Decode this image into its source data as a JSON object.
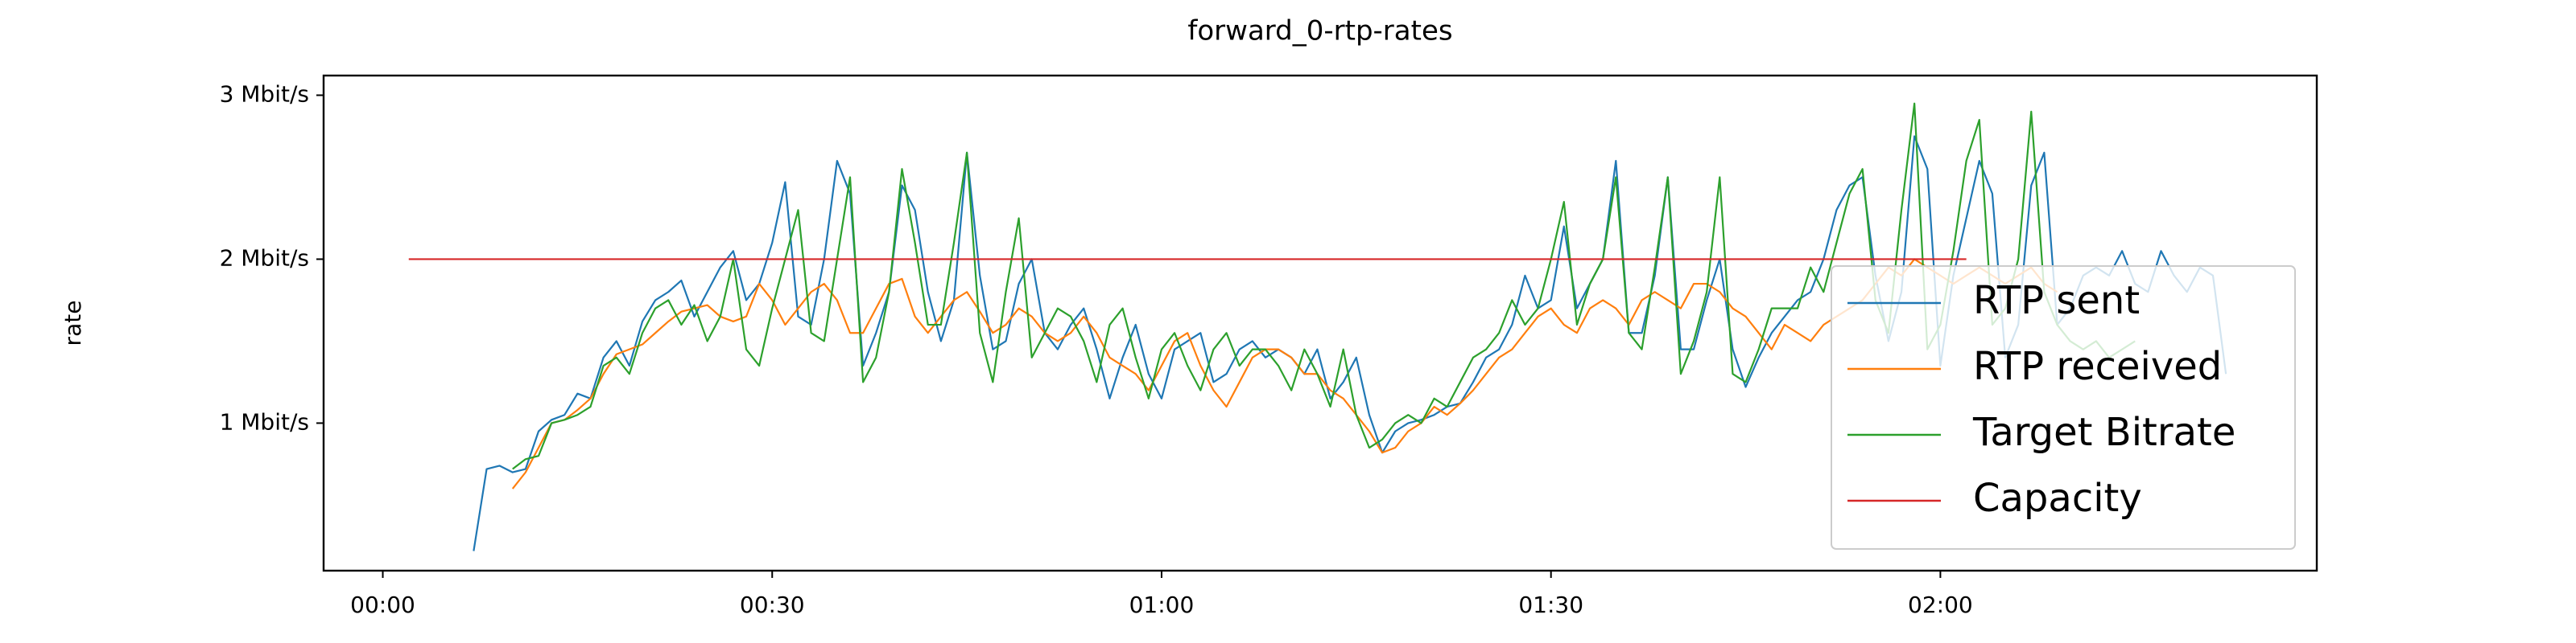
{
  "chart_data": {
    "type": "line",
    "title": "forward_0-rtp-rates",
    "y_label": "rate",
    "xlim": [
      -4.56,
      149
    ],
    "ylim": [
      0.1,
      3.12
    ],
    "xticks": [
      {
        "value": 0,
        "label": "00:00"
      },
      {
        "value": 30,
        "label": "00:30"
      },
      {
        "value": 60,
        "label": "01:00"
      },
      {
        "value": 90,
        "label": "01:30"
      },
      {
        "value": 120,
        "label": "02:00"
      }
    ],
    "yticks": [
      {
        "value": 1,
        "label": "1 Mbit/s"
      },
      {
        "value": 2,
        "label": "2 Mbit/s"
      },
      {
        "value": 3,
        "label": "3 Mbit/s"
      }
    ],
    "grid": false,
    "legend": "lower right",
    "x": [
      2,
      3,
      4,
      5,
      6,
      7,
      8,
      9,
      10,
      11,
      12,
      13,
      14,
      15,
      16,
      17,
      18,
      19,
      20,
      21,
      22,
      23,
      24,
      25,
      26,
      27,
      28,
      29,
      30,
      31,
      32,
      33,
      34,
      35,
      36,
      37,
      38,
      39,
      40,
      41,
      42,
      43,
      44,
      45,
      46,
      47,
      48,
      49,
      50,
      51,
      52,
      53,
      54,
      55,
      56,
      57,
      58,
      59,
      60,
      61,
      62,
      63,
      64,
      65,
      66,
      67,
      68,
      69,
      70,
      71,
      72,
      73,
      74,
      75,
      76,
      77,
      78,
      79,
      80,
      81,
      82,
      83,
      84,
      85,
      86,
      87,
      88,
      89,
      90,
      91,
      92,
      93,
      94,
      95,
      96,
      97,
      98,
      99,
      100,
      101,
      102,
      103,
      104,
      105,
      106,
      107,
      108,
      109,
      110,
      111,
      112,
      113,
      114,
      115,
      116,
      117,
      118,
      119,
      120,
      121,
      122,
      123,
      124,
      125,
      126,
      127,
      128,
      129,
      130,
      131,
      132,
      133,
      134,
      135,
      136,
      137,
      138,
      139,
      140,
      141,
      142
    ],
    "series": [
      {
        "name": "RTP sent",
        "color": "#1f77b4",
        "values": [
          null,
          null,
          null,
          null,
          null,
          0.22,
          0.72,
          0.74,
          0.7,
          0.72,
          0.95,
          1.02,
          1.05,
          1.18,
          1.15,
          1.4,
          1.5,
          1.35,
          1.62,
          1.75,
          1.8,
          1.87,
          1.65,
          1.8,
          1.95,
          2.05,
          1.75,
          1.85,
          2.1,
          2.47,
          1.65,
          1.6,
          2.0,
          2.6,
          2.4,
          1.35,
          1.55,
          1.8,
          2.45,
          2.3,
          1.8,
          1.5,
          1.75,
          2.65,
          1.9,
          1.45,
          1.5,
          1.85,
          2.0,
          1.55,
          1.45,
          1.6,
          1.7,
          1.45,
          1.15,
          1.4,
          1.6,
          1.3,
          1.15,
          1.45,
          1.5,
          1.55,
          1.25,
          1.3,
          1.45,
          1.5,
          1.4,
          1.45,
          1.4,
          1.3,
          1.45,
          1.15,
          1.25,
          1.4,
          1.05,
          0.82,
          0.95,
          1.0,
          1.02,
          1.05,
          1.1,
          1.12,
          1.25,
          1.4,
          1.45,
          1.6,
          1.9,
          1.7,
          1.75,
          2.2,
          1.7,
          1.85,
          2.0,
          2.6,
          1.55,
          1.55,
          1.9,
          2.5,
          1.45,
          1.45,
          1.75,
          2.0,
          1.45,
          1.22,
          1.4,
          1.55,
          1.65,
          1.75,
          1.8,
          2.0,
          2.3,
          2.45,
          2.5,
          1.9,
          1.5,
          1.8,
          2.75,
          2.55,
          1.35,
          1.9,
          2.25,
          2.6,
          2.4,
          1.4,
          1.6,
          2.45,
          2.65,
          1.6,
          1.7,
          1.9,
          1.95,
          1.9,
          2.05,
          1.85,
          1.8,
          2.05,
          1.9,
          1.8,
          1.95,
          1.9,
          1.3
        ]
      },
      {
        "name": "RTP received",
        "color": "#ff7f0e",
        "values": [
          null,
          null,
          null,
          null,
          null,
          null,
          null,
          null,
          0.6,
          0.7,
          0.85,
          1.0,
          1.02,
          1.08,
          1.15,
          1.3,
          1.42,
          1.45,
          1.48,
          1.55,
          1.62,
          1.68,
          1.7,
          1.72,
          1.65,
          1.62,
          1.65,
          1.85,
          1.75,
          1.6,
          1.7,
          1.8,
          1.85,
          1.75,
          1.55,
          1.55,
          1.7,
          1.85,
          1.88,
          1.65,
          1.55,
          1.65,
          1.75,
          1.8,
          1.68,
          1.55,
          1.6,
          1.7,
          1.65,
          1.55,
          1.5,
          1.55,
          1.65,
          1.55,
          1.4,
          1.35,
          1.3,
          1.2,
          1.35,
          1.5,
          1.55,
          1.35,
          1.2,
          1.1,
          1.25,
          1.4,
          1.45,
          1.45,
          1.4,
          1.3,
          1.3,
          1.2,
          1.15,
          1.05,
          0.95,
          0.82,
          0.85,
          0.95,
          1.0,
          1.1,
          1.05,
          1.12,
          1.2,
          1.3,
          1.4,
          1.45,
          1.55,
          1.65,
          1.7,
          1.6,
          1.55,
          1.7,
          1.75,
          1.7,
          1.6,
          1.75,
          1.8,
          1.75,
          1.7,
          1.85,
          1.85,
          1.8,
          1.7,
          1.65,
          1.55,
          1.45,
          1.6,
          1.55,
          1.5,
          1.6,
          1.65,
          1.7,
          1.75,
          1.85,
          1.95,
          1.9,
          2.0,
          1.95,
          1.9,
          1.85,
          1.9,
          1.95,
          1.9,
          1.85,
          1.9,
          1.95,
          1.85,
          1.8,
          null,
          null,
          null,
          null,
          null,
          null,
          null,
          null,
          null,
          null,
          null,
          null,
          null
        ]
      },
      {
        "name": "Target Bitrate",
        "color": "#2ca02c",
        "values": [
          null,
          null,
          null,
          null,
          null,
          null,
          null,
          null,
          0.72,
          0.78,
          0.8,
          1.0,
          1.02,
          1.05,
          1.1,
          1.35,
          1.4,
          1.3,
          1.55,
          1.7,
          1.75,
          1.6,
          1.72,
          1.5,
          1.65,
          2.0,
          1.45,
          1.35,
          1.7,
          2.0,
          2.3,
          1.55,
          1.5,
          2.0,
          2.5,
          1.25,
          1.4,
          1.8,
          2.55,
          2.1,
          1.6,
          1.6,
          2.1,
          2.65,
          1.55,
          1.25,
          1.8,
          2.25,
          1.4,
          1.55,
          1.7,
          1.65,
          1.5,
          1.25,
          1.6,
          1.7,
          1.4,
          1.15,
          1.45,
          1.55,
          1.35,
          1.2,
          1.45,
          1.55,
          1.35,
          1.45,
          1.45,
          1.35,
          1.2,
          1.45,
          1.3,
          1.1,
          1.45,
          1.05,
          0.85,
          0.9,
          1.0,
          1.05,
          1.0,
          1.15,
          1.1,
          1.25,
          1.4,
          1.45,
          1.55,
          1.75,
          1.6,
          1.7,
          2.0,
          2.35,
          1.6,
          1.85,
          2.0,
          2.5,
          1.55,
          1.45,
          1.95,
          2.5,
          1.3,
          1.5,
          1.8,
          2.5,
          1.3,
          1.25,
          1.45,
          1.7,
          1.7,
          1.7,
          1.95,
          1.8,
          2.1,
          2.4,
          2.55,
          1.75,
          1.55,
          2.3,
          2.95,
          1.45,
          1.6,
          2.05,
          2.6,
          2.85,
          1.6,
          1.7,
          2.0,
          2.9,
          1.8,
          1.6,
          1.5,
          1.45,
          1.5,
          1.4,
          1.45,
          1.5,
          null,
          null,
          null,
          null,
          null,
          null,
          null
        ]
      },
      {
        "name": "Capacity",
        "color": "#d62728",
        "values": [
          2,
          2,
          2,
          2,
          2,
          2,
          2,
          2,
          2,
          2,
          2,
          2,
          2,
          2,
          2,
          2,
          2,
          2,
          2,
          2,
          2,
          2,
          2,
          2,
          2,
          2,
          2,
          2,
          2,
          2,
          2,
          2,
          2,
          2,
          2,
          2,
          2,
          2,
          2,
          2,
          2,
          2,
          2,
          2,
          2,
          2,
          2,
          2,
          2,
          2,
          2,
          2,
          2,
          2,
          2,
          2,
          2,
          2,
          2,
          2,
          2,
          2,
          2,
          2,
          2,
          2,
          2,
          2,
          2,
          2,
          2,
          2,
          2,
          2,
          2,
          2,
          2,
          2,
          2,
          2,
          2,
          2,
          2,
          2,
          2,
          2,
          2,
          2,
          2,
          2,
          2,
          2,
          2,
          2,
          2,
          2,
          2,
          2,
          2,
          2,
          2,
          2,
          2,
          2,
          2,
          2,
          2,
          2,
          2,
          2,
          2,
          2,
          2,
          2,
          2,
          2,
          2,
          2,
          2,
          2,
          2,
          null,
          null,
          null,
          null,
          null,
          null,
          null,
          null,
          null,
          null,
          null,
          null,
          null,
          null,
          null,
          null,
          null,
          null,
          null,
          null
        ]
      }
    ]
  }
}
